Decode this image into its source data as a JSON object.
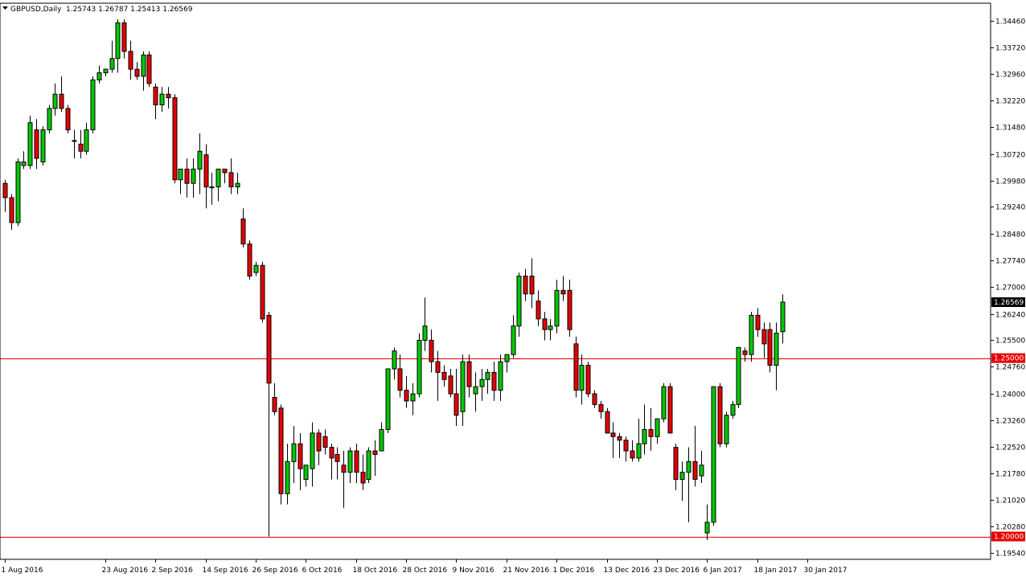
{
  "header": {
    "symbol": "GBPUSD,Daily",
    "ohlc": "1.25743 1.26787 1.25413 1.26569"
  },
  "colors": {
    "bull": "#00c800",
    "bear": "#e60000",
    "level": "#e60000",
    "price_tag_bg": "#000000",
    "price_tag_text": "#ffffff",
    "level_tag_bg": "#e60000"
  },
  "chart_data": {
    "type": "candlestick",
    "title": "GBPUSD,Daily",
    "ylim": [
      1.1936,
      1.3495
    ],
    "y_ticks": [
      "1.34460",
      "1.33720",
      "1.32960",
      "1.32220",
      "1.31480",
      "1.30720",
      "1.29980",
      "1.29240",
      "1.28480",
      "1.27740",
      "1.27000",
      "1.26240",
      "1.25500",
      "1.24760",
      "1.24000",
      "1.23260",
      "1.22520",
      "1.21780",
      "1.21020",
      "1.20280",
      "1.19540"
    ],
    "x_ticks": [
      {
        "label": "1 Aug 2016",
        "index": 0
      },
      {
        "label": "23 Aug 2016",
        "index": 16
      },
      {
        "label": "2 Sep 2016",
        "index": 24
      },
      {
        "label": "14 Sep 2016",
        "index": 32
      },
      {
        "label": "26 Sep 2016",
        "index": 40
      },
      {
        "label": "6 Oct 2016",
        "index": 48
      },
      {
        "label": "18 Oct 2016",
        "index": 56
      },
      {
        "label": "28 Oct 2016",
        "index": 64
      },
      {
        "label": "9 Nov 2016",
        "index": 72
      },
      {
        "label": "21 Nov 2016",
        "index": 80
      },
      {
        "label": "1 Dec 2016",
        "index": 88
      },
      {
        "label": "13 Dec 2016",
        "index": 96
      },
      {
        "label": "23 Dec 2016",
        "index": 104
      },
      {
        "label": "6 Jan 2017",
        "index": 112
      },
      {
        "label": "18 Jan 2017",
        "index": 120
      },
      {
        "label": "30 Jan 2017",
        "index": 128
      }
    ],
    "levels": [
      {
        "value": 1.25,
        "label": "1.25000"
      },
      {
        "value": 1.2,
        "label": "1.20000"
      }
    ],
    "last_price": {
      "value": 1.26569,
      "label": "1.26569"
    },
    "ohlc": [
      [
        1.299,
        1.3,
        1.291,
        1.295
      ],
      [
        1.295,
        1.296,
        1.286,
        1.288
      ],
      [
        1.288,
        1.306,
        1.287,
        1.305
      ],
      [
        1.304,
        1.308,
        1.303,
        1.305
      ],
      [
        1.304,
        1.318,
        1.303,
        1.316
      ],
      [
        1.314,
        1.317,
        1.303,
        1.306
      ],
      [
        1.305,
        1.315,
        1.304,
        1.314
      ],
      [
        1.314,
        1.321,
        1.313,
        1.32
      ],
      [
        1.32,
        1.327,
        1.318,
        1.324
      ],
      [
        1.324,
        1.329,
        1.319,
        1.32
      ],
      [
        1.32,
        1.321,
        1.313,
        1.314
      ],
      [
        1.311,
        1.314,
        1.306,
        1.311
      ],
      [
        1.31,
        1.314,
        1.306,
        1.308
      ],
      [
        1.308,
        1.316,
        1.307,
        1.314
      ],
      [
        1.314,
        1.329,
        1.313,
        1.328
      ],
      [
        1.328,
        1.332,
        1.327,
        1.33
      ],
      [
        1.33,
        1.331,
        1.329,
        1.331
      ],
      [
        1.331,
        1.339,
        1.33,
        1.334
      ],
      [
        1.334,
        1.345,
        1.33,
        1.344
      ],
      [
        1.344,
        1.345,
        1.334,
        1.336
      ],
      [
        1.336,
        1.339,
        1.328,
        1.331
      ],
      [
        1.331,
        1.333,
        1.328,
        1.329
      ],
      [
        1.329,
        1.336,
        1.325,
        1.335
      ],
      [
        1.335,
        1.336,
        1.326,
        1.327
      ],
      [
        1.326,
        1.327,
        1.317,
        1.321
      ],
      [
        1.321,
        1.326,
        1.319,
        1.324
      ],
      [
        1.324,
        1.326,
        1.32,
        1.323
      ],
      [
        1.323,
        1.324,
        1.299,
        1.3
      ],
      [
        1.3,
        1.303,
        1.296,
        1.303
      ],
      [
        1.303,
        1.306,
        1.295,
        1.299
      ],
      [
        1.299,
        1.306,
        1.295,
        1.303
      ],
      [
        1.303,
        1.313,
        1.296,
        1.308
      ],
      [
        1.307,
        1.31,
        1.292,
        1.298
      ],
      [
        1.298,
        1.302,
        1.293,
        1.298
      ],
      [
        1.298,
        1.303,
        1.294,
        1.303
      ],
      [
        1.303,
        1.303,
        1.299,
        1.302
      ],
      [
        1.302,
        1.306,
        1.296,
        1.298
      ],
      [
        1.298,
        1.302,
        1.296,
        1.299
      ],
      [
        1.289,
        1.292,
        1.281,
        1.282
      ],
      [
        1.282,
        1.283,
        1.272,
        1.273
      ],
      [
        1.274,
        1.277,
        1.273,
        1.276
      ],
      [
        1.276,
        1.277,
        1.26,
        1.261
      ],
      [
        1.262,
        1.263,
        1.2,
        1.243
      ],
      [
        1.239,
        1.243,
        1.234,
        1.235
      ],
      [
        1.236,
        1.237,
        1.209,
        1.212
      ],
      [
        1.212,
        1.226,
        1.209,
        1.221
      ],
      [
        1.221,
        1.231,
        1.215,
        1.226
      ],
      [
        1.226,
        1.229,
        1.213,
        1.219
      ],
      [
        1.216,
        1.22,
        1.214,
        1.22
      ],
      [
        1.219,
        1.232,
        1.214,
        1.229
      ],
      [
        1.229,
        1.23,
        1.22,
        1.224
      ],
      [
        1.228,
        1.23,
        1.223,
        1.225
      ],
      [
        1.225,
        1.226,
        1.216,
        1.222
      ],
      [
        1.223,
        1.225,
        1.216,
        1.221
      ],
      [
        1.22,
        1.224,
        1.208,
        1.218
      ],
      [
        1.218,
        1.225,
        1.215,
        1.224
      ],
      [
        1.224,
        1.226,
        1.215,
        1.218
      ],
      [
        1.218,
        1.223,
        1.213,
        1.215
      ],
      [
        1.216,
        1.225,
        1.215,
        1.224
      ],
      [
        1.224,
        1.227,
        1.217,
        1.223
      ],
      [
        1.224,
        1.232,
        1.224,
        1.23
      ],
      [
        1.23,
        1.246,
        1.229,
        1.247
      ],
      [
        1.247,
        1.253,
        1.244,
        1.252
      ],
      [
        1.247,
        1.251,
        1.239,
        1.241
      ],
      [
        1.241,
        1.245,
        1.236,
        1.238
      ],
      [
        1.238,
        1.243,
        1.234,
        1.24
      ],
      [
        1.24,
        1.257,
        1.239,
        1.255
      ],
      [
        1.255,
        1.267,
        1.252,
        1.259
      ],
      [
        1.255,
        1.258,
        1.246,
        1.249
      ],
      [
        1.249,
        1.252,
        1.238,
        1.246
      ],
      [
        1.246,
        1.248,
        1.242,
        1.244
      ],
      [
        1.245,
        1.247,
        1.239,
        1.24
      ],
      [
        1.24,
        1.247,
        1.231,
        1.234
      ],
      [
        1.235,
        1.251,
        1.231,
        1.249
      ],
      [
        1.249,
        1.251,
        1.239,
        1.242
      ],
      [
        1.24,
        1.246,
        1.235,
        1.242
      ],
      [
        1.242,
        1.247,
        1.238,
        1.244
      ],
      [
        1.244,
        1.247,
        1.24,
        1.246
      ],
      [
        1.246,
        1.249,
        1.238,
        1.241
      ],
      [
        1.241,
        1.251,
        1.238,
        1.249
      ],
      [
        1.249,
        1.251,
        1.246,
        1.251
      ],
      [
        1.251,
        1.262,
        1.25,
        1.259
      ],
      [
        1.259,
        1.274,
        1.256,
        1.273
      ],
      [
        1.273,
        1.275,
        1.266,
        1.268
      ],
      [
        1.273,
        1.278,
        1.264,
        1.268
      ],
      [
        1.266,
        1.269,
        1.259,
        1.261
      ],
      [
        1.261,
        1.263,
        1.255,
        1.258
      ],
      [
        1.258,
        1.261,
        1.255,
        1.259
      ],
      [
        1.259,
        1.272,
        1.257,
        1.269
      ],
      [
        1.269,
        1.273,
        1.266,
        1.268
      ],
      [
        1.269,
        1.272,
        1.256,
        1.258
      ],
      [
        1.254,
        1.256,
        1.239,
        1.241
      ],
      [
        1.241,
        1.251,
        1.237,
        1.248
      ],
      [
        1.248,
        1.249,
        1.239,
        1.24
      ],
      [
        1.24,
        1.241,
        1.236,
        1.237
      ],
      [
        1.237,
        1.238,
        1.233,
        1.235
      ],
      [
        1.235,
        1.236,
        1.229,
        1.229
      ],
      [
        1.229,
        1.232,
        1.222,
        1.228
      ],
      [
        1.228,
        1.229,
        1.222,
        1.227
      ],
      [
        1.227,
        1.228,
        1.221,
        1.224
      ],
      [
        1.224,
        1.227,
        1.221,
        1.222
      ],
      [
        1.222,
        1.233,
        1.221,
        1.226
      ],
      [
        1.226,
        1.237,
        1.223,
        1.23
      ],
      [
        1.23,
        1.236,
        1.224,
        1.228
      ],
      [
        1.228,
        1.233,
        1.226,
        1.233
      ],
      [
        1.233,
        1.243,
        1.232,
        1.242
      ],
      [
        1.242,
        1.243,
        1.229,
        1.229
      ],
      [
        1.225,
        1.226,
        1.213,
        1.216
      ],
      [
        1.216,
        1.221,
        1.21,
        1.218
      ],
      [
        1.218,
        1.225,
        1.204,
        1.221
      ],
      [
        1.221,
        1.231,
        1.214,
        1.216
      ],
      [
        1.217,
        1.224,
        1.215,
        1.22
      ],
      [
        1.201,
        1.209,
        1.199,
        1.204
      ],
      [
        1.204,
        1.242,
        1.203,
        1.242
      ],
      [
        1.242,
        1.243,
        1.225,
        1.226
      ],
      [
        1.226,
        1.235,
        1.225,
        1.234
      ],
      [
        1.234,
        1.238,
        1.233,
        1.237
      ],
      [
        1.237,
        1.253,
        1.236,
        1.253
      ],
      [
        1.252,
        1.253,
        1.249,
        1.251
      ],
      [
        1.251,
        1.263,
        1.249,
        1.262
      ],
      [
        1.262,
        1.264,
        1.256,
        1.258
      ],
      [
        1.258,
        1.26,
        1.25,
        1.254
      ],
      [
        1.258,
        1.26,
        1.246,
        1.248
      ],
      [
        1.248,
        1.26,
        1.241,
        1.257
      ],
      [
        1.2574,
        1.2679,
        1.2541,
        1.2657
      ]
    ]
  }
}
